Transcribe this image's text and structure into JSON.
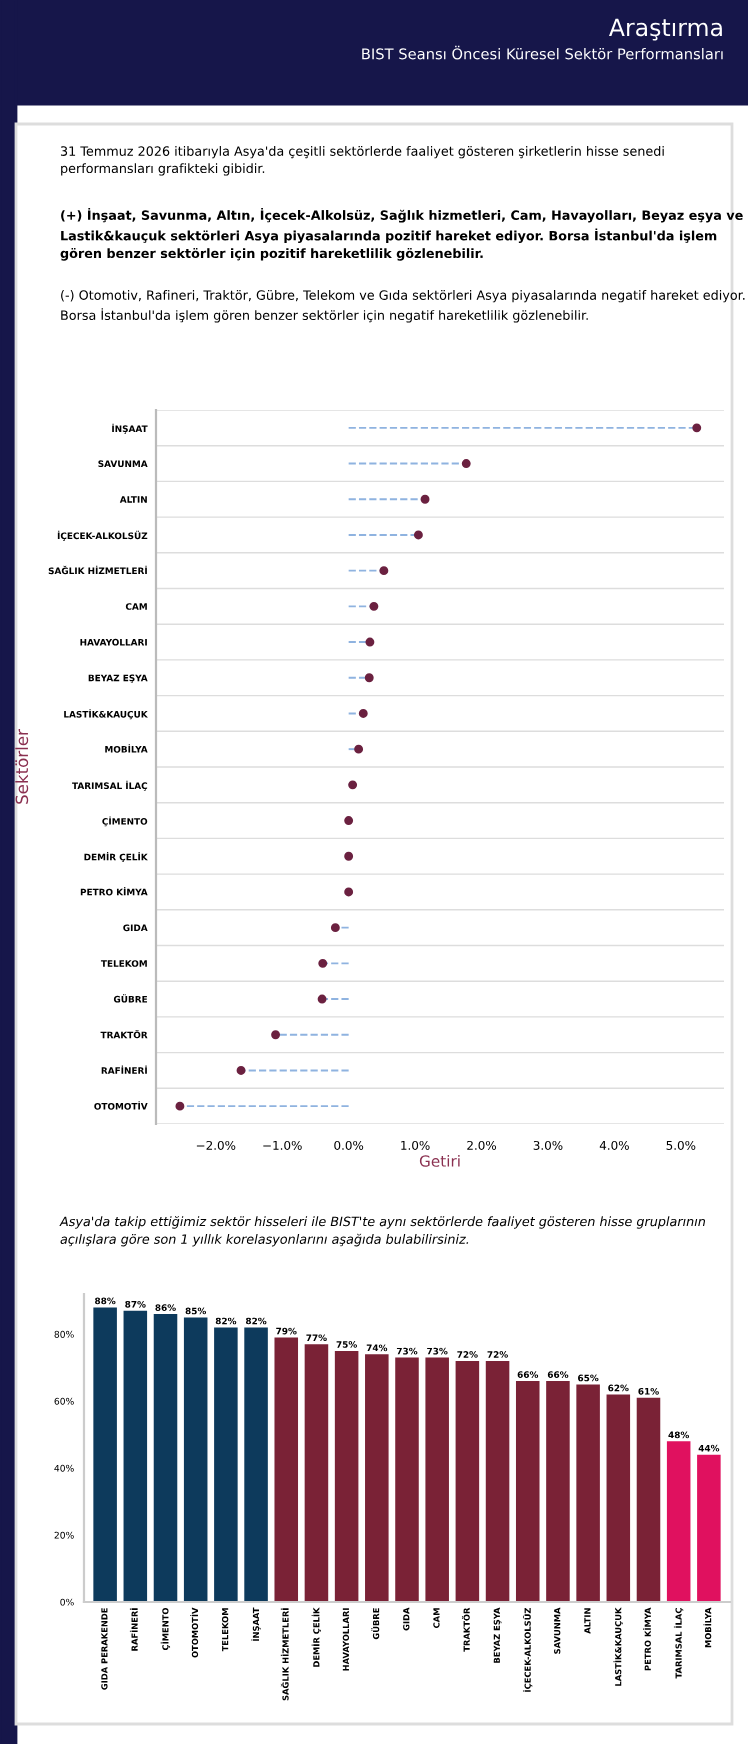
{
  "chart_data": [
    {
      "type": "lollipop",
      "orientation": "horizontal",
      "title": "Araştırma",
      "subtitle": "BIST Seansı Öncesi Küresel Sektör Performansları",
      "annotations": [
        "31 Temmuz 2026 itibarıyla Asya'da çeşitli sektörlerde faaliyet gösteren şirketlerin hisse senedi performansları grafikteki gibidir.",
        "(+) İnşaat, Savunma, Altın, İçecek-Alkolsüz, Sağlık hizmetleri, Cam, Havayolları, Beyaz eşya ve Lastik&kauçuk sektörleri Asya piyasalarında pozitif hareket ediyor. Borsa İstanbul'da işlem gören benzer sektörler için pozitif hareketlilik gözlenebilir.",
        "(-) Otomotiv, Rafineri, Traktör, Gübre, Telekom ve Gıda sektörleri Asya piyasalarında negatif hareket ediyor. Borsa İstanbul'da işlem gören benzer sektörler için negatif hareketlilik gözlenebilir."
      ],
      "xlabel": "Getiri",
      "ylabel": "Sektörler",
      "categories": [
        "İNŞAAT",
        "SAVUNMA",
        "ALTIN",
        "İÇECEK-ALKOLSÜZ",
        "SAĞLIK HİZMETLERİ",
        "CAM",
        "HAVAYOLLARI",
        "BEYAZ EŞYA",
        "LASTİK&KAUÇUK",
        "MOBİLYA",
        "TARIMSAL İLAÇ",
        "ÇİMENTO",
        "DEMİR ÇELİK",
        "PETRO KİMYA",
        "GIDA",
        "TELEKOM",
        "GÜBRE",
        "TRAKTÖR",
        "RAFİNERİ",
        "OTOMOTİV"
      ],
      "color": "#8fb3e0",
      "line_style": "dashed",
      "marker": "circle",
      "series": [
        {
          "color": "#6b2140",
          "values": [
            5.24,
            1.77,
            1.15,
            1.05,
            0.53,
            0.38,
            0.32,
            0.31,
            0.22,
            0.15,
            0.06,
            0.0,
            0.0,
            0.0,
            -0.2,
            -0.39,
            -0.4,
            -1.1,
            -1.62,
            -2.54
          ]
        }
      ],
      "xlim": [
        -2.9,
        5.65
      ],
      "xticks": [
        {
          "value": -2,
          "label": "−2.0%"
        },
        {
          "value": -1,
          "label": "−1.0%"
        },
        {
          "value": 0,
          "label": "0.0%"
        },
        {
          "value": 1,
          "label": "1.0%"
        },
        {
          "value": 2,
          "label": "2.0%"
        },
        {
          "value": 3,
          "label": "3.0%"
        },
        {
          "value": 4,
          "label": "4.0%"
        },
        {
          "value": 5,
          "label": "5.0%"
        }
      ],
      "grid": "y"
    },
    {
      "type": "bar",
      "annotations": [
        "Asya'da takip ettiğimiz sektör hisseleri ile BIST'te aynı sektörlerde faaliyet gösteren hisse gruplarının açılışlara göre son 1 yıllık korelasyonlarını aşağıda bulabilirsiniz."
      ],
      "categories": [
        "GIDA PERAKENDE",
        "RAFİNERİ",
        "ÇİMENTO",
        "OTOMOTİV",
        "TELEKOM",
        "İNŞAAT",
        "SAĞLIK HİZMETLERİ",
        "DEMİR ÇELİK",
        "HAVAYOLLARI",
        "GÜBRE",
        "GIDA",
        "CAM",
        "TRAKTÖR",
        "BEYAZ EŞYA",
        "İÇECEK-ALKOLSÜZ",
        "SAVUNMA",
        "ALTIN",
        "LASTİK&KAUÇUK",
        "PETRO KİMYA",
        "TARIMSAL İLAÇ",
        "MOBİLYA"
      ],
      "values": [
        88,
        87,
        86,
        85,
        82,
        82,
        79,
        77,
        75,
        74,
        73,
        73,
        72,
        72,
        66,
        66,
        65,
        62,
        61,
        48,
        44
      ],
      "value_labels": [
        "88%",
        "87%",
        "86%",
        "85%",
        "82%",
        "82%",
        "79%",
        "77%",
        "75%",
        "74%",
        "73%",
        "73%",
        "72%",
        "72%",
        "66%",
        "66%",
        "65%",
        "62%",
        "61%",
        "48%",
        "44%"
      ],
      "colors": [
        "#0d3a5c",
        "#0d3a5c",
        "#0d3a5c",
        "#0d3a5c",
        "#0d3a5c",
        "#0d3a5c",
        "#7a2236",
        "#7a2236",
        "#7a2236",
        "#7a2236",
        "#7a2236",
        "#7a2236",
        "#7a2236",
        "#7a2236",
        "#7a2236",
        "#7a2236",
        "#7a2236",
        "#7a2236",
        "#7a2236",
        "#e0115f",
        "#e0115f"
      ],
      "ylim": [
        0,
        92
      ],
      "yticks": [
        {
          "value": 0,
          "label": "0%"
        },
        {
          "value": 20,
          "label": "20%"
        },
        {
          "value": 40,
          "label": "40%"
        },
        {
          "value": 60,
          "label": "60%"
        },
        {
          "value": 80,
          "label": "80%"
        }
      ]
    }
  ]
}
